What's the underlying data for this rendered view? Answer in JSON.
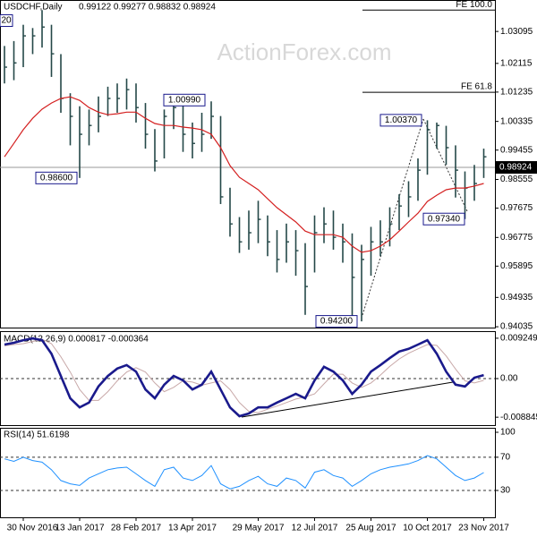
{
  "chart_data": [
    {
      "type": "ohlc",
      "title": "USDCHF,Daily",
      "subtitle": "0.99122 0.99277 0.98832 0.98924",
      "watermark": "ActionForex.com",
      "categories": [
        null,
        null,
        "30 Nov 2016",
        null,
        null,
        null,
        null,
        null,
        "13 Jan 2017",
        null,
        null,
        null,
        null,
        null,
        "28 Feb 2017",
        null,
        null,
        null,
        null,
        null,
        "13 Apr 2017",
        null,
        null,
        null,
        null,
        null,
        null,
        "29 May 2017",
        null,
        null,
        null,
        null,
        null,
        "12 Jul 2017",
        null,
        null,
        null,
        null,
        null,
        "25 Aug 2017",
        null,
        null,
        null,
        null,
        null,
        "10 Oct 2017",
        null,
        null,
        null,
        null,
        null,
        "23 Nov 2017"
      ],
      "high": [
        1.0265,
        1.028,
        1.033,
        1.032,
        1.0375,
        1.033,
        1.024,
        1.012,
        1.008,
        1.007,
        1.011,
        1.014,
        1.015,
        1.0165,
        1.015,
        1.009,
        1.001,
        1.007,
        1.0099,
        1.0085,
        1.003,
        1.006,
        1.0095,
        1.005,
        0.983,
        0.974,
        0.976,
        0.979,
        0.9745,
        0.97,
        0.972,
        0.97,
        0.966,
        0.9745,
        0.977,
        0.976,
        0.972,
        0.969,
        0.9655,
        0.971,
        0.973,
        0.977,
        0.981,
        0.985,
        0.992,
        1.0037,
        1.003,
        1.002,
        0.996,
        0.988,
        0.99,
        0.995
      ],
      "low": [
        1.015,
        1.016,
        1.02,
        1.024,
        1.026,
        1.017,
        1.006,
        0.996,
        0.986,
        0.996,
        1.0,
        1.005,
        1.006,
        1.007,
        1.003,
        0.995,
        0.988,
        0.992,
        1.001,
        0.994,
        0.992,
        0.994,
        0.998,
        0.978,
        0.968,
        0.963,
        0.964,
        0.966,
        0.962,
        0.957,
        0.96,
        0.956,
        0.944,
        0.957,
        0.966,
        0.964,
        0.96,
        0.943,
        0.942,
        0.956,
        0.962,
        0.965,
        0.97,
        0.974,
        0.979,
        0.987,
        0.995,
        0.99,
        0.98,
        0.9734,
        0.979,
        0.986
      ],
      "close": [
        1.02,
        1.0213,
        1.0296,
        1.0296,
        1.0323,
        1.0241,
        1.0104,
        1.0049,
        0.9994,
        1.0021,
        1.0049,
        1.0104,
        1.0104,
        1.0131,
        1.0076,
        0.9994,
        0.9912,
        1.0049,
        1.0076,
        0.9994,
        0.9966,
        0.9994,
        1.0049,
        0.9802,
        0.9719,
        0.9664,
        0.9692,
        0.9733,
        0.9664,
        0.961,
        0.9664,
        0.9637,
        0.9527,
        0.9692,
        0.9719,
        0.9678,
        0.9664,
        0.9555,
        0.961,
        0.9664,
        0.9664,
        0.9719,
        0.9774,
        0.9802,
        0.9884,
        1.0008,
        1.0021,
        0.9953,
        0.9884,
        0.9829,
        0.9843,
        0.9925
      ],
      "bar_color": "#244848",
      "moving_average": {
        "color": "#d42020",
        "values": [
          0.9925,
          0.9966,
          1.0008,
          1.0043,
          1.0071,
          1.009,
          1.0104,
          1.0109,
          1.0098,
          1.0076,
          1.0062,
          1.0054,
          1.0057,
          1.0062,
          1.0062,
          1.0043,
          1.0027,
          1.0021,
          1.0021,
          1.0016,
          1.0013,
          1.0008,
          0.9994,
          0.9953,
          0.9898,
          0.9862,
          0.9843,
          0.9824,
          0.9796,
          0.9769,
          0.9747,
          0.9725,
          0.9697,
          0.9686,
          0.9686,
          0.9686,
          0.9678,
          0.9651,
          0.9632,
          0.9637,
          0.9651,
          0.967,
          0.9697,
          0.9725,
          0.9752,
          0.9788,
          0.9807,
          0.9824,
          0.9829,
          0.9829,
          0.9835,
          0.9843
        ]
      },
      "ylim": [
        0.9401,
        1.0406
      ],
      "yticks": [
        1.03095,
        1.02115,
        1.01235,
        1.00335,
        0.99455,
        0.98555,
        0.97675,
        0.96775,
        0.95895,
        0.94935,
        0.94035
      ],
      "levels": [
        {
          "label": "FE 100.0",
          "value": 1.0375
        },
        {
          "label": "FE 61.8",
          "value": 1.0123
        }
      ],
      "last_price": {
        "value": 0.98924,
        "label": "0.98924"
      },
      "annotations": [
        {
          "label": "20"
        },
        {
          "label": "0.98600",
          "value": 0.986
        },
        {
          "label": "1.00990",
          "value": 1.0099
        },
        {
          "label": "1.00370",
          "value": 1.0037
        },
        {
          "label": "0.97340",
          "value": 0.9734
        },
        {
          "label": "0.94200",
          "value": 0.942
        }
      ]
    },
    {
      "type": "line",
      "title": "MACD(12,26,9) 0.000817 -0.000364",
      "series": [
        {
          "color": "#1a1a8c",
          "values": [
            0.0078,
            0.0082,
            0.0088,
            0.0092,
            0.0088,
            0.0057,
            0.0006,
            -0.0045,
            -0.0066,
            -0.0055,
            -0.0018,
            0.0006,
            0.0023,
            0.0031,
            0.0016,
            -0.0025,
            -0.0045,
            -0.0014,
            0.0006,
            -0.0004,
            -0.0025,
            -0.0014,
            0.0016,
            -0.0025,
            -0.0066,
            -0.0086,
            -0.008,
            -0.0066,
            -0.0066,
            -0.0055,
            -0.0045,
            -0.0035,
            -0.0045,
            -0.0004,
            0.0027,
            0.0016,
            -0.0004,
            -0.0035,
            -0.0014,
            0.0016,
            0.0031,
            0.0047,
            0.0062,
            0.0068,
            0.0078,
            0.0088,
            0.0057,
            0.0016,
            -0.0014,
            -0.0018,
            0.0002,
            0.0008
          ]
        },
        {
          "color": "#c8a8a8",
          "values": [
            0.0075,
            0.0078,
            0.008,
            0.0085,
            0.009,
            0.008,
            0.005,
            0.0015,
            -0.0025,
            -0.005,
            -0.005,
            -0.003,
            -0.0005,
            0.0015,
            0.0025,
            0.0015,
            -0.001,
            -0.003,
            -0.002,
            -0.0005,
            -0.0008,
            -0.0015,
            -0.001,
            -0.0005,
            -0.0025,
            -0.0055,
            -0.0075,
            -0.0078,
            -0.007,
            -0.0063,
            -0.0055,
            -0.0047,
            -0.0042,
            -0.0035,
            -0.0012,
            0.001,
            0.001,
            -0.001,
            -0.002,
            -0.001,
            0.0008,
            0.0028,
            0.0045,
            0.0058,
            0.0068,
            0.0078,
            0.0076,
            0.0052,
            0.0022,
            -0.0005,
            -0.001,
            -0.0004
          ]
        }
      ],
      "ylim": [
        -0.01066,
        0.01087
      ],
      "yticks": [
        0.009249,
        {
          "value": 0,
          "label": "0.00"
        },
        -0.008845
      ]
    },
    {
      "type": "line",
      "title": "RSI(14) 51.6198",
      "series": [
        {
          "color": "#1e90ff",
          "values": [
            68,
            65,
            70,
            66,
            64,
            55,
            42,
            38,
            36,
            45,
            50,
            55,
            57,
            58,
            50,
            42,
            35,
            55,
            58,
            45,
            42,
            48,
            60,
            38,
            32,
            35,
            42,
            47,
            38,
            35,
            45,
            42,
            33,
            52,
            55,
            48,
            45,
            35,
            42,
            50,
            55,
            58,
            60,
            62,
            66,
            72,
            68,
            58,
            48,
            42,
            45,
            51.6
          ]
        }
      ],
      "ylim": [
        -2.3,
        105.4
      ],
      "yticks": [
        100,
        70,
        30
      ],
      "reference_lines": [
        70,
        30
      ]
    }
  ]
}
